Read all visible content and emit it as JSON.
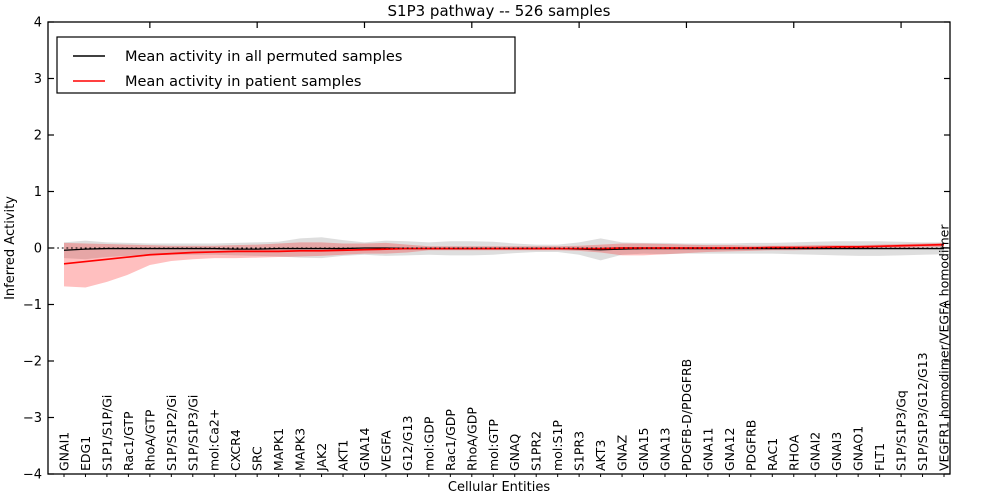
{
  "figure": {
    "title": "S1P3 pathway -- 526 samples"
  },
  "chart_data": {
    "type": "line",
    "title": "S1P3 pathway -- 526 samples",
    "xlabel": "Cellular Entities",
    "ylabel": "Inferred Activity",
    "ylim": [
      -4,
      4
    ],
    "yticks": [
      -4,
      -3,
      -2,
      -1,
      0,
      1,
      2,
      3,
      4
    ],
    "grid": false,
    "legend_position": "upper left",
    "zero_reference_line": 0,
    "tick_direction": "in",
    "categories": [
      "GNAI1",
      "EDG1",
      "S1P1/S1P/Gi",
      "Rac1/GTP",
      "RhoA/GTP",
      "S1P/S1P2/Gi",
      "S1P/S1P3/Gi",
      "mol:Ca2+",
      "CXCR4",
      "SRC",
      "MAPK1",
      "MAPK3",
      "JAK2",
      "AKT1",
      "GNA14",
      "VEGFA",
      "G12/G13",
      "mol:GDP",
      "Rac1/GDP",
      "RhoA/GDP",
      "mol:GTP",
      "GNAQ",
      "S1PR2",
      "mol:S1P",
      "S1PR3",
      "AKT3",
      "GNAZ",
      "GNA15",
      "GNA13",
      "PDGFB-D/PDGFRB",
      "GNA11",
      "GNA12",
      "PDGFRB",
      "RAC1",
      "RHOA",
      "GNAI2",
      "GNAI3",
      "GNAO1",
      "FLT1",
      "S1P/S1P3/Gq",
      "S1P/S1P3/G12/G13",
      "VEGFR1 homodimer/VEGFA homodimer"
    ],
    "series": [
      {
        "name": "Mean activity in all permuted samples",
        "color": "#000000",
        "band_opacity": 0.13,
        "values": [
          -0.04,
          -0.02,
          -0.01,
          -0.01,
          -0.01,
          -0.01,
          -0.01,
          -0.01,
          -0.02,
          -0.02,
          -0.01,
          -0.01,
          -0.01,
          -0.01,
          0,
          0,
          -0.01,
          -0.01,
          -0.01,
          -0.01,
          -0.01,
          -0.01,
          -0.01,
          -0.01,
          -0.02,
          -0.03,
          -0.02,
          -0.01,
          -0.01,
          -0.01,
          -0.01,
          -0.01,
          -0.01,
          -0.01,
          -0.01,
          -0.01,
          -0.01,
          -0.01,
          -0.01,
          -0.01,
          -0.01,
          -0.01
        ],
        "band_upper": [
          0.1,
          0.13,
          0.1,
          0.09,
          0.08,
          0.08,
          0.08,
          0.08,
          0.09,
          0.1,
          0.11,
          0.17,
          0.19,
          0.14,
          0.1,
          0.13,
          0.12,
          0.1,
          0.12,
          0.12,
          0.11,
          0.08,
          0.06,
          0.06,
          0.1,
          0.17,
          0.1,
          0.09,
          0.09,
          0.08,
          0.08,
          0.08,
          0.09,
          0.09,
          0.1,
          0.11,
          0.12,
          0.12,
          0.12,
          0.11,
          0.1,
          0.1
        ],
        "band_lower": [
          -0.18,
          -0.2,
          -0.16,
          -0.14,
          -0.13,
          -0.12,
          -0.12,
          -0.12,
          -0.13,
          -0.14,
          -0.15,
          -0.17,
          -0.18,
          -0.14,
          -0.12,
          -0.14,
          -0.13,
          -0.12,
          -0.13,
          -0.13,
          -0.12,
          -0.09,
          -0.07,
          -0.07,
          -0.12,
          -0.22,
          -0.12,
          -0.1,
          -0.11,
          -0.1,
          -0.1,
          -0.1,
          -0.1,
          -0.1,
          -0.11,
          -0.12,
          -0.13,
          -0.14,
          -0.14,
          -0.13,
          -0.12,
          -0.11
        ]
      },
      {
        "name": "Mean activity in patient samples",
        "color": "#ff0000",
        "band_opacity": 0.25,
        "values": [
          -0.28,
          -0.24,
          -0.2,
          -0.16,
          -0.12,
          -0.1,
          -0.08,
          -0.07,
          -0.06,
          -0.06,
          -0.06,
          -0.05,
          -0.05,
          -0.04,
          -0.03,
          -0.02,
          -0.01,
          -0.01,
          -0.01,
          -0.01,
          -0.01,
          -0.01,
          -0.01,
          -0.01,
          -0.01,
          -0.01,
          0,
          0,
          0,
          0,
          0,
          0,
          0,
          0.01,
          0.01,
          0.01,
          0.02,
          0.02,
          0.03,
          0.04,
          0.05,
          0.06
        ],
        "band_upper": [
          0.09,
          0.08,
          0.07,
          0.06,
          0.05,
          0.04,
          0.04,
          0.04,
          0.05,
          0.06,
          0.08,
          0.1,
          0.1,
          0.08,
          0.08,
          0.09,
          0.06,
          0.03,
          0.03,
          0.03,
          0.03,
          0.03,
          0.03,
          0.03,
          0.04,
          0.06,
          0.08,
          0.08,
          0.07,
          0.06,
          0.05,
          0.05,
          0.04,
          0.04,
          0.04,
          0.05,
          0.05,
          0.05,
          0.06,
          0.07,
          0.08,
          0.09
        ],
        "band_lower": [
          -0.68,
          -0.7,
          -0.6,
          -0.47,
          -0.3,
          -0.23,
          -0.2,
          -0.18,
          -0.18,
          -0.17,
          -0.16,
          -0.15,
          -0.14,
          -0.12,
          -0.1,
          -0.1,
          -0.08,
          -0.04,
          -0.04,
          -0.04,
          -0.04,
          -0.04,
          -0.04,
          -0.04,
          -0.05,
          -0.08,
          -0.13,
          -0.13,
          -0.11,
          -0.09,
          -0.07,
          -0.06,
          -0.05,
          -0.04,
          -0.04,
          -0.03,
          -0.02,
          -0.02,
          -0.01,
          0.0,
          0.01,
          0.02
        ]
      }
    ]
  }
}
